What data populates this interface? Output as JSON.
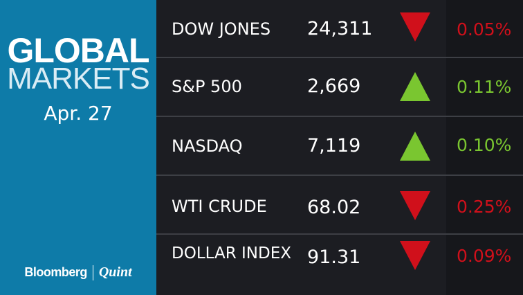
{
  "panel": {
    "title_line1": "GLOBAL",
    "title_line2": "MARKETS",
    "date": "Apr. 27",
    "brand_left": "Bloomberg",
    "brand_right": "Quint"
  },
  "colors": {
    "left_panel": "#0e7ba8",
    "table_bg": "#1c1d22",
    "down": "#d0101b",
    "up": "#7ac630"
  },
  "markets": [
    {
      "name": "DOW JONES",
      "value": "24,311",
      "direction": "down",
      "icon": "down-triangle-icon",
      "change": "0.05%"
    },
    {
      "name": "S&P 500",
      "value": "2,669",
      "direction": "up",
      "icon": "up-triangle-icon",
      "change": "0.11%"
    },
    {
      "name": "NASDAQ",
      "value": "7,119",
      "direction": "up",
      "icon": "up-triangle-icon",
      "change": "0.10%"
    },
    {
      "name": "WTI CRUDE",
      "value": "68.02",
      "direction": "down",
      "icon": "down-triangle-icon",
      "change": "0.25%"
    },
    {
      "name": "DOLLAR INDEX",
      "value": "91.31",
      "direction": "down",
      "icon": "down-triangle-icon",
      "change": "0.09%"
    }
  ]
}
